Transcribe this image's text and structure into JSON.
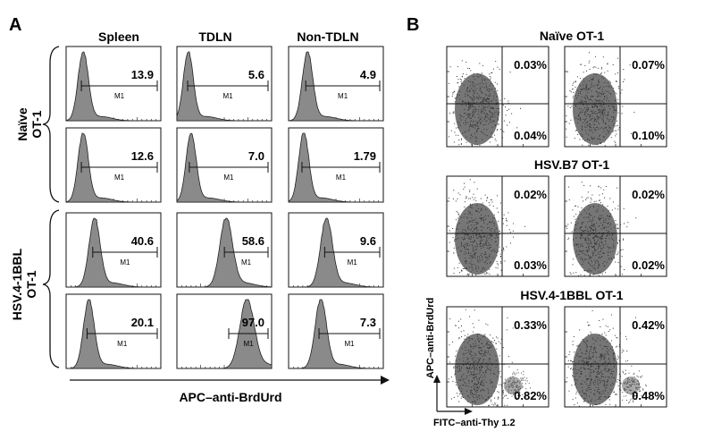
{
  "panel_a": {
    "letter": "A",
    "columns": [
      "Spleen",
      "TDLN",
      "Non-TDLN"
    ],
    "row_groups": [
      {
        "line1": "Naïve",
        "line2": "OT-1"
      },
      {
        "line1": "HSV.4-1BBL",
        "line2": "OT-1"
      }
    ],
    "gate_label": "M1",
    "x_axis_label": "APC–anti-BrdUrd"
  },
  "panel_b": {
    "letter": "B",
    "group_titles": [
      "Naïve OT-1",
      "HSV.B7 OT-1",
      "HSV.4-1BBL OT-1"
    ],
    "x_axis_label": "FITC–anti-Thy 1.2",
    "y_axis_label": "APC–anti-BrdUrd"
  },
  "chart_data": [
    {
      "type": "histogram",
      "title": "",
      "xlabel": "APC–anti-BrdUrd",
      "columns": [
        "Spleen",
        "TDLN",
        "Non-TDLN"
      ],
      "rows": [
        {
          "group": "Naïve OT-1",
          "values": [
            "13.9",
            "5.6",
            "4.9"
          ]
        },
        {
          "group": "Naïve OT-1",
          "values": [
            "12.6",
            "7.0",
            "1.79"
          ]
        },
        {
          "group": "HSV.4-1BBL OT-1",
          "values": [
            "40.6",
            "58.6",
            "9.6"
          ]
        },
        {
          "group": "HSV.4-1BBL OT-1",
          "values": [
            "20.1",
            "97.0",
            "7.3"
          ]
        }
      ],
      "peak_position": [
        [
          0.18,
          0.12,
          0.2
        ],
        [
          0.18,
          0.15,
          0.16
        ],
        [
          0.3,
          0.52,
          0.4
        ],
        [
          0.24,
          0.74,
          0.34
        ]
      ],
      "gate": "M1"
    },
    {
      "type": "scatter",
      "xlabel": "FITC–anti-Thy 1.2",
      "ylabel": "APC–anti-BrdUrd",
      "groups": [
        {
          "title": "Naïve OT-1",
          "quadrants": [
            {
              "upper_right": "0.03%",
              "lower_right": "0.04%"
            },
            {
              "upper_right": "0.07%",
              "lower_right": "0.10%"
            }
          ]
        },
        {
          "title": "HSV.B7 OT-1",
          "quadrants": [
            {
              "upper_right": "0.02%",
              "lower_right": "0.03%"
            },
            {
              "upper_right": "0.02%",
              "lower_right": "0.02%"
            }
          ]
        },
        {
          "title": "HSV.4-1BBL OT-1",
          "quadrants": [
            {
              "upper_right": "0.33%",
              "lower_right": "0.82%"
            },
            {
              "upper_right": "0.42%",
              "lower_right": "0.48%"
            }
          ]
        }
      ]
    }
  ],
  "colors": {
    "fill": "#8a8a8a",
    "dot": "#6a6a6a",
    "line": "#111111"
  }
}
